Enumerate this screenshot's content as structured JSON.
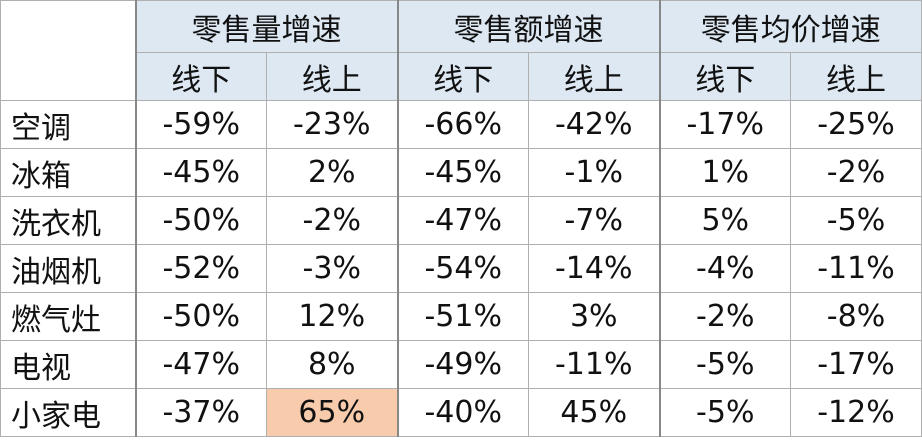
{
  "table": {
    "groups": [
      "零售量增速",
      "零售额增速",
      "零售均价增速"
    ],
    "subheaders": [
      "线下",
      "线上",
      "线下",
      "线上",
      "线下",
      "线上"
    ],
    "rows": [
      {
        "label": "空调",
        "values": [
          "-59%",
          "-23%",
          "-66%",
          "-42%",
          "-17%",
          "-25%"
        ]
      },
      {
        "label": "冰箱",
        "values": [
          "-45%",
          "2%",
          "-45%",
          "-1%",
          "1%",
          "-2%"
        ]
      },
      {
        "label": "洗衣机",
        "values": [
          "-50%",
          "-2%",
          "-47%",
          "-7%",
          "5%",
          "-5%"
        ]
      },
      {
        "label": "油烟机",
        "values": [
          "-52%",
          "-3%",
          "-54%",
          "-14%",
          "-4%",
          "-11%"
        ]
      },
      {
        "label": "燃气灶",
        "values": [
          "-50%",
          "12%",
          "-51%",
          "3%",
          "-2%",
          "-8%"
        ]
      },
      {
        "label": "电视",
        "values": [
          "-47%",
          "8%",
          "-49%",
          "-11%",
          "-5%",
          "-17%"
        ]
      },
      {
        "label": "小家电",
        "values": [
          "-37%",
          "65%",
          "-40%",
          "45%",
          "-5%",
          "-12%"
        ]
      }
    ]
  }
}
